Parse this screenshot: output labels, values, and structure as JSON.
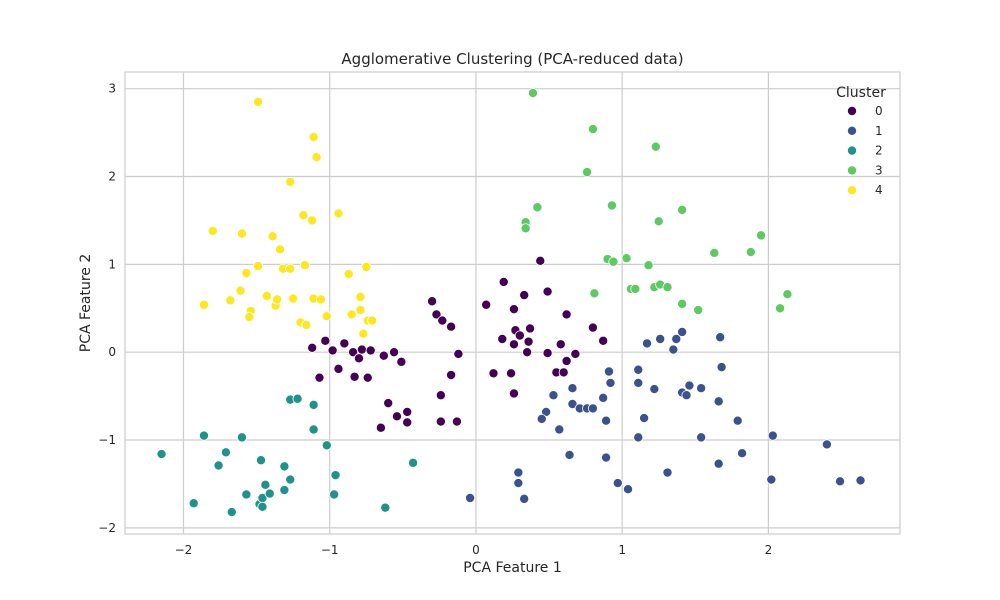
{
  "chart_data": {
    "type": "scatter",
    "title": "Agglomerative Clustering (PCA-reduced data)",
    "xlabel": "PCA Feature 1",
    "ylabel": "PCA Feature 2",
    "xlim": [
      -2.4,
      2.9
    ],
    "ylim": [
      -2.07,
      3.19
    ],
    "xticks": [
      -2,
      -1,
      0,
      1,
      2
    ],
    "yticks": [
      -2,
      -1,
      0,
      1,
      2,
      3
    ],
    "xtick_labels": [
      "−2",
      "−1",
      "0",
      "1",
      "2"
    ],
    "ytick_labels": [
      "−2",
      "−1",
      "0",
      "1",
      "2",
      "3"
    ],
    "grid": true,
    "legend": {
      "title": "Cluster",
      "placement": "top-right"
    },
    "series": [
      {
        "name": "0",
        "color": "#440154",
        "points": [
          [
            -1.12,
            0.05
          ],
          [
            -1.03,
            0.13
          ],
          [
            -1.07,
            -0.29
          ],
          [
            -0.98,
            0.02
          ],
          [
            -0.9,
            0.1
          ],
          [
            -0.94,
            -0.19
          ],
          [
            -0.84,
            0.0
          ],
          [
            -0.8,
            -0.07
          ],
          [
            -0.8,
            -0.07
          ],
          [
            -0.78,
            0.03
          ],
          [
            -0.74,
            -0.29
          ],
          [
            -0.83,
            -0.28
          ],
          [
            -0.72,
            0.02
          ],
          [
            -0.63,
            -0.04
          ],
          [
            -0.56,
            0.0
          ],
          [
            -0.51,
            -0.11
          ],
          [
            -0.6,
            -0.58
          ],
          [
            -0.54,
            -0.73
          ],
          [
            -0.47,
            -0.68
          ],
          [
            -0.47,
            -0.8
          ],
          [
            -0.65,
            -0.86
          ],
          [
            -0.3,
            0.58
          ],
          [
            -0.27,
            0.43
          ],
          [
            -0.23,
            0.36
          ],
          [
            -0.17,
            0.29
          ],
          [
            -0.12,
            -0.02
          ],
          [
            -0.17,
            -0.26
          ],
          [
            -0.24,
            -0.49
          ],
          [
            -0.24,
            -0.79
          ],
          [
            -0.13,
            -0.79
          ],
          [
            0.07,
            0.54
          ],
          [
            0.19,
            0.8
          ],
          [
            0.26,
            0.49
          ],
          [
            0.33,
            0.65
          ],
          [
            0.44,
            1.04
          ],
          [
            0.49,
            0.69
          ],
          [
            0.27,
            0.25
          ],
          [
            0.18,
            0.15
          ],
          [
            0.26,
            0.09
          ],
          [
            0.3,
            0.19
          ],
          [
            0.37,
            0.27
          ],
          [
            0.36,
            0.12
          ],
          [
            0.35,
            0.0
          ],
          [
            0.12,
            -0.24
          ],
          [
            0.24,
            -0.24
          ],
          [
            0.26,
            -0.47
          ],
          [
            0.49,
            -0.01
          ],
          [
            0.58,
            0.09
          ],
          [
            0.62,
            0.43
          ],
          [
            0.62,
            -0.1
          ],
          [
            0.55,
            -0.23
          ],
          [
            0.6,
            -0.23
          ],
          [
            0.68,
            -0.02
          ],
          [
            0.8,
            0.28
          ],
          [
            0.87,
            0.13
          ]
        ]
      },
      {
        "name": "1",
        "color": "#3b528b",
        "points": [
          [
            0.48,
            -0.68
          ],
          [
            0.45,
            -0.76
          ],
          [
            0.53,
            -0.49
          ],
          [
            0.57,
            -0.88
          ],
          [
            0.66,
            -0.41
          ],
          [
            0.66,
            -0.59
          ],
          [
            0.71,
            -0.64
          ],
          [
            0.76,
            -0.64
          ],
          [
            0.8,
            -0.64
          ],
          [
            0.87,
            -0.52
          ],
          [
            0.89,
            -0.78
          ],
          [
            0.92,
            -0.35
          ],
          [
            0.91,
            -0.22
          ],
          [
            0.64,
            -1.17
          ],
          [
            0.89,
            -1.2
          ],
          [
            0.97,
            -1.49
          ],
          [
            1.04,
            -1.56
          ],
          [
            1.11,
            -0.97
          ],
          [
            1.11,
            -0.35
          ],
          [
            1.11,
            -0.2
          ],
          [
            1.15,
            -0.75
          ],
          [
            1.17,
            0.1
          ],
          [
            1.22,
            -0.42
          ],
          [
            1.26,
            0.15
          ],
          [
            1.31,
            -1.37
          ],
          [
            1.35,
            0.03
          ],
          [
            1.37,
            0.15
          ],
          [
            1.41,
            0.23
          ],
          [
            1.41,
            -0.46
          ],
          [
            1.46,
            -0.38
          ],
          [
            1.44,
            -0.49
          ],
          [
            1.54,
            -0.41
          ],
          [
            1.54,
            -0.97
          ],
          [
            1.67,
            0.17
          ],
          [
            1.68,
            -0.17
          ],
          [
            1.66,
            -0.56
          ],
          [
            1.66,
            -1.27
          ],
          [
            1.79,
            -0.78
          ],
          [
            1.82,
            -1.15
          ],
          [
            2.03,
            -0.95
          ],
          [
            2.02,
            -1.45
          ],
          [
            2.4,
            -1.05
          ],
          [
            2.49,
            -1.47
          ],
          [
            2.63,
            -1.46
          ],
          [
            0.29,
            -1.37
          ],
          [
            0.29,
            -1.49
          ],
          [
            0.33,
            -1.67
          ],
          [
            -0.04,
            -1.66
          ]
        ]
      },
      {
        "name": "2",
        "color": "#21918c",
        "points": [
          [
            -2.15,
            -1.16
          ],
          [
            -1.93,
            -1.72
          ],
          [
            -1.86,
            -0.95
          ],
          [
            -1.76,
            -1.29
          ],
          [
            -1.71,
            -1.14
          ],
          [
            -1.67,
            -1.82
          ],
          [
            -1.6,
            -0.97
          ],
          [
            -1.57,
            -1.62
          ],
          [
            -1.47,
            -1.23
          ],
          [
            -1.48,
            -1.73
          ],
          [
            -1.46,
            -1.66
          ],
          [
            -1.46,
            -1.76
          ],
          [
            -1.44,
            -1.51
          ],
          [
            -1.41,
            -1.61
          ],
          [
            -1.31,
            -1.3
          ],
          [
            -1.31,
            -1.57
          ],
          [
            -1.27,
            -1.45
          ],
          [
            -1.27,
            -0.54
          ],
          [
            -1.22,
            -0.53
          ],
          [
            -1.11,
            -0.6
          ],
          [
            -1.11,
            -0.88
          ],
          [
            -1.02,
            -1.06
          ],
          [
            -0.96,
            -1.4
          ],
          [
            -0.97,
            -1.62
          ],
          [
            -0.62,
            -1.77
          ],
          [
            -0.43,
            -1.26
          ]
        ]
      },
      {
        "name": "3",
        "color": "#5ec962",
        "points": [
          [
            0.39,
            2.95
          ],
          [
            0.8,
            2.54
          ],
          [
            0.76,
            2.05
          ],
          [
            1.23,
            2.34
          ],
          [
            0.93,
            1.67
          ],
          [
            0.42,
            1.65
          ],
          [
            0.34,
            1.48
          ],
          [
            0.34,
            1.41
          ],
          [
            1.25,
            1.49
          ],
          [
            1.41,
            1.62
          ],
          [
            1.95,
            1.33
          ],
          [
            1.63,
            1.13
          ],
          [
            1.88,
            1.14
          ],
          [
            0.9,
            1.06
          ],
          [
            0.94,
            1.03
          ],
          [
            1.03,
            1.07
          ],
          [
            1.18,
            0.99
          ],
          [
            1.06,
            0.72
          ],
          [
            1.09,
            0.72
          ],
          [
            1.22,
            0.74
          ],
          [
            1.26,
            0.77
          ],
          [
            1.31,
            0.74
          ],
          [
            0.81,
            0.67
          ],
          [
            1.41,
            0.55
          ],
          [
            1.52,
            0.48
          ],
          [
            2.08,
            0.5
          ],
          [
            2.13,
            0.66
          ]
        ]
      },
      {
        "name": "4",
        "color": "#fde725",
        "points": [
          [
            -1.49,
            2.85
          ],
          [
            -1.11,
            2.45
          ],
          [
            -1.09,
            2.22
          ],
          [
            -1.27,
            1.94
          ],
          [
            -1.18,
            1.56
          ],
          [
            -1.12,
            1.5
          ],
          [
            -0.94,
            1.58
          ],
          [
            -1.8,
            1.38
          ],
          [
            -1.6,
            1.35
          ],
          [
            -1.39,
            1.32
          ],
          [
            -1.34,
            1.17
          ],
          [
            -1.57,
            0.9
          ],
          [
            -1.49,
            0.98
          ],
          [
            -1.32,
            0.95
          ],
          [
            -1.27,
            0.95
          ],
          [
            -1.17,
            0.99
          ],
          [
            -0.87,
            0.89
          ],
          [
            -0.75,
            0.97
          ],
          [
            -1.86,
            0.54
          ],
          [
            -1.68,
            0.59
          ],
          [
            -1.61,
            0.7
          ],
          [
            -1.54,
            0.47
          ],
          [
            -1.55,
            0.4
          ],
          [
            -1.43,
            0.64
          ],
          [
            -1.37,
            0.53
          ],
          [
            -1.36,
            0.6
          ],
          [
            -1.25,
            0.61
          ],
          [
            -1.11,
            0.61
          ],
          [
            -1.06,
            0.6
          ],
          [
            -1.02,
            0.42
          ],
          [
            -1.02,
            0.41
          ],
          [
            -0.85,
            0.43
          ],
          [
            -0.79,
            0.48
          ],
          [
            -0.79,
            0.63
          ],
          [
            -0.74,
            0.36
          ],
          [
            -0.71,
            0.36
          ],
          [
            -0.77,
            0.21
          ],
          [
            -1.2,
            0.34
          ],
          [
            -1.16,
            0.31
          ]
        ]
      }
    ]
  }
}
